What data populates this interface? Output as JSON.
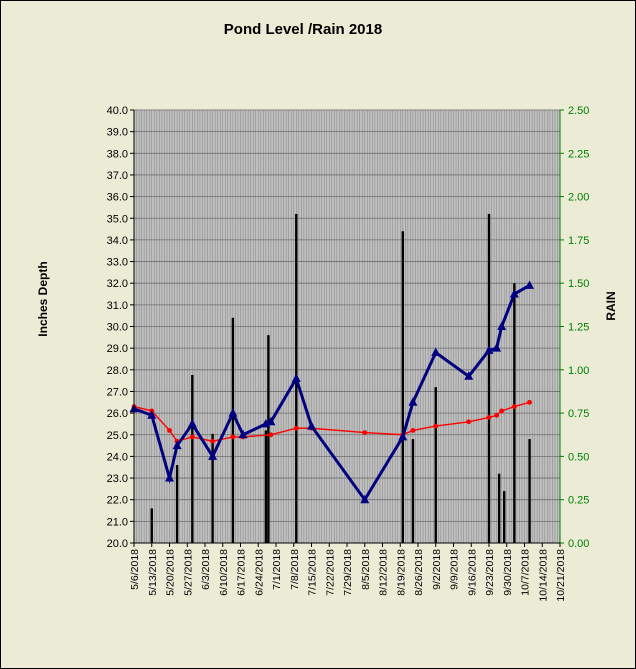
{
  "chart_data": {
    "type": "line",
    "title": "Pond Level /Rain 2018",
    "ylabel": "Inches Depth",
    "y2label": "RAIN",
    "ylim": [
      20.0,
      40.0
    ],
    "y2lim": [
      0.0,
      2.5
    ],
    "yticks": [
      "20.0",
      "21.0",
      "22.0",
      "23.0",
      "24.0",
      "25.0",
      "26.0",
      "27.0",
      "28.0",
      "29.0",
      "30.0",
      "31.0",
      "32.0",
      "33.0",
      "34.0",
      "35.0",
      "36.0",
      "37.0",
      "38.0",
      "39.0",
      "40.0"
    ],
    "y2ticks": [
      "0.00",
      "0.25",
      "0.50",
      "0.75",
      "1.00",
      "1.25",
      "1.50",
      "1.75",
      "2.00",
      "2.25",
      "2.50"
    ],
    "xlim": [
      "2018-05-06",
      "2018-10-21"
    ],
    "xticks": [
      "5/6/2018",
      "5/13/2018",
      "5/20/2018",
      "5/27/2018",
      "6/3/2018",
      "6/10/2018",
      "6/17/2018",
      "6/24/2018",
      "7/1/2018",
      "7/8/2018",
      "7/15/2018",
      "7/22/2018",
      "7/29/2018",
      "8/5/2018",
      "8/12/2018",
      "8/19/2018",
      "8/26/2018",
      "9/2/2018",
      "9/9/2018",
      "9/16/2018",
      "9/23/2018",
      "9/30/2018",
      "10/7/2018",
      "10/14/2018",
      "10/21/2018"
    ],
    "grid": true,
    "colors": {
      "plot_bg": "#C0C0C0",
      "page_bg": "#ECECD6",
      "pond": "#000080",
      "red": "#FF0000",
      "rain": "#000000",
      "rain_axis": "#008000"
    },
    "series": [
      {
        "role": "pond",
        "axis": "left",
        "points": [
          [
            "2018-05-06",
            26.2
          ],
          [
            "2018-05-13",
            25.9
          ],
          [
            "2018-05-20",
            23.0
          ],
          [
            "2018-05-23",
            24.5
          ],
          [
            "2018-05-29",
            25.5
          ],
          [
            "2018-06-06",
            24.0
          ],
          [
            "2018-06-14",
            26.0
          ],
          [
            "2018-06-18",
            25.0
          ],
          [
            "2018-06-27",
            25.5
          ],
          [
            "2018-06-29",
            25.6
          ],
          [
            "2018-07-09",
            27.6
          ],
          [
            "2018-07-15",
            25.4
          ],
          [
            "2018-08-05",
            22.0
          ],
          [
            "2018-08-20",
            24.9
          ],
          [
            "2018-08-24",
            26.5
          ],
          [
            "2018-09-02",
            28.8
          ],
          [
            "2018-09-15",
            27.7
          ],
          [
            "2018-09-23",
            28.9
          ],
          [
            "2018-09-26",
            29.0
          ],
          [
            "2018-09-28",
            30.0
          ],
          [
            "2018-10-03",
            31.5
          ],
          [
            "2018-10-09",
            31.9
          ]
        ]
      },
      {
        "role": "red",
        "axis": "left",
        "points": [
          [
            "2018-05-06",
            26.3
          ],
          [
            "2018-05-13",
            26.1
          ],
          [
            "2018-05-20",
            25.2
          ],
          [
            "2018-05-23",
            24.7
          ],
          [
            "2018-05-29",
            24.9
          ],
          [
            "2018-06-06",
            24.7
          ],
          [
            "2018-06-14",
            24.9
          ],
          [
            "2018-06-18",
            24.9
          ],
          [
            "2018-06-29",
            25.0
          ],
          [
            "2018-07-09",
            25.3
          ],
          [
            "2018-07-15",
            25.3
          ],
          [
            "2018-08-05",
            25.1
          ],
          [
            "2018-08-20",
            25.0
          ],
          [
            "2018-08-24",
            25.2
          ],
          [
            "2018-09-02",
            25.4
          ],
          [
            "2018-09-15",
            25.6
          ],
          [
            "2018-09-23",
            25.8
          ],
          [
            "2018-09-26",
            25.9
          ],
          [
            "2018-09-28",
            26.1
          ],
          [
            "2018-10-03",
            26.3
          ],
          [
            "2018-10-09",
            26.5
          ]
        ]
      },
      {
        "role": "rain",
        "axis": "right",
        "bars": [
          [
            "2018-05-13",
            0.2
          ],
          [
            "2018-05-23",
            0.45
          ],
          [
            "2018-05-29",
            0.97
          ],
          [
            "2018-06-06",
            0.63
          ],
          [
            "2018-06-14",
            1.3
          ],
          [
            "2018-06-27",
            0.65
          ],
          [
            "2018-06-28",
            1.2
          ],
          [
            "2018-07-09",
            1.9
          ],
          [
            "2018-08-20",
            1.8
          ],
          [
            "2018-08-24",
            0.6
          ],
          [
            "2018-09-02",
            0.9
          ],
          [
            "2018-09-23",
            1.9
          ],
          [
            "2018-09-27",
            0.4
          ],
          [
            "2018-09-29",
            0.3
          ],
          [
            "2018-10-03",
            1.5
          ],
          [
            "2018-10-09",
            0.6
          ]
        ]
      }
    ]
  }
}
